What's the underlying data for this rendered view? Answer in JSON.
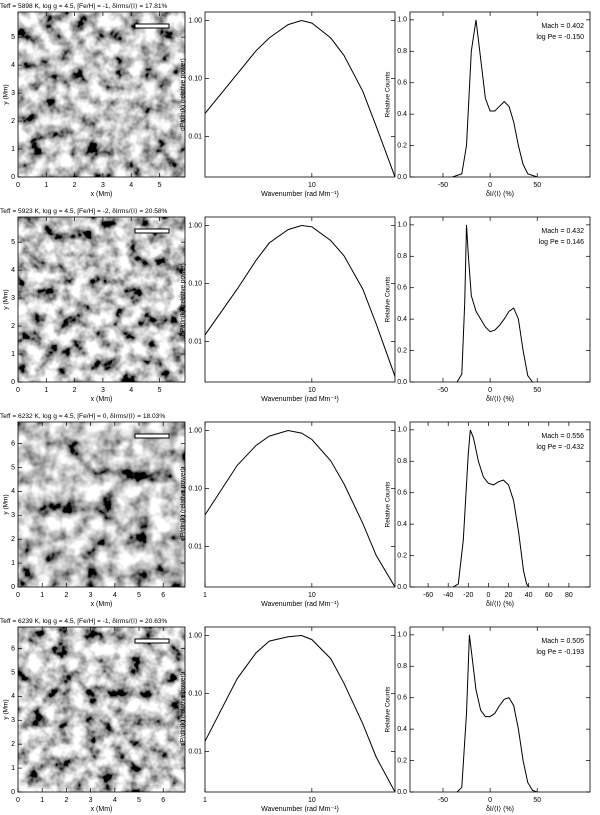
{
  "chart_data": [
    {
      "type": "image",
      "title": "Teff = 5898 K, log g = 4.5, [Fe/H] = -1, δIrms/⟨I⟩ = 17.81%",
      "xlabel": "x (Mm)",
      "ylabel": "y (Mm)",
      "xlim": [
        0,
        5.9
      ],
      "ylim": [
        0,
        5.9
      ],
      "xticks": [
        0,
        1,
        2,
        3,
        4,
        5
      ],
      "yticks": [
        0,
        1,
        2,
        3,
        4,
        5
      ]
    },
    {
      "type": "line",
      "xscale": "log",
      "yscale": "log",
      "xlabel": "Wavenumber (rad Mm⁻¹)",
      "ylabel": "dP/dln(k) (relative power)",
      "color": "#000000",
      "xlim": [
        1,
        60
      ],
      "ylim": [
        0.002,
        1.4
      ],
      "xticks": [
        10
      ],
      "yticks": [
        {
          "value": 0.01,
          "label": "0.01"
        },
        {
          "value": 0.1,
          "label": "0.10"
        },
        {
          "value": 1,
          "label": "1.00"
        }
      ],
      "x": [
        1,
        2,
        3,
        4,
        6,
        8,
        10,
        15,
        20,
        30,
        40,
        60
      ],
      "values": [
        0.025,
        0.12,
        0.3,
        0.5,
        0.85,
        1.0,
        0.9,
        0.5,
        0.25,
        0.06,
        0.015,
        0.002
      ]
    },
    {
      "type": "line",
      "xlabel": "δI/⟨I⟩ (%)",
      "ylabel": "Relative Counts",
      "annotations": [
        "Mach = 0.402",
        "log Pe = -0.150"
      ],
      "color": "#000000",
      "xlim": [
        -85,
        106
      ],
      "ylim": [
        0,
        1.05
      ],
      "xticks": [
        -50,
        0,
        50
      ],
      "yticks": [
        {
          "value": 0,
          "label": "0.0"
        },
        0.2,
        0.4,
        0.6,
        0.8,
        {
          "value": 1,
          "label": "1.0"
        }
      ],
      "x": [
        -40,
        -30,
        -25,
        -20,
        -15,
        -10,
        -5,
        0,
        5,
        10,
        15,
        20,
        25,
        30,
        35,
        40,
        50
      ],
      "values": [
        0,
        0.02,
        0.2,
        0.8,
        1.0,
        0.75,
        0.5,
        0.42,
        0.42,
        0.45,
        0.48,
        0.45,
        0.35,
        0.2,
        0.08,
        0.02,
        0
      ]
    },
    {
      "type": "image",
      "title": "Teff = 5923 K, log g = 4.5, [Fe/H] = -2, δIrms/⟨I⟩ = 20.58%",
      "xlabel": "x (Mm)",
      "ylabel": "y (Mm)",
      "xlim": [
        0,
        5.9
      ],
      "ylim": [
        0,
        5.9
      ],
      "xticks": [
        0,
        1,
        2,
        3,
        4,
        5
      ],
      "yticks": [
        0,
        1,
        2,
        3,
        4,
        5
      ]
    },
    {
      "type": "line",
      "xscale": "log",
      "yscale": "log",
      "xlabel": "Wavenumber (rad Mm⁻¹)",
      "ylabel": "dP/dln(k) (relative power)",
      "color": "#000000",
      "xlim": [
        1,
        60
      ],
      "ylim": [
        0.002,
        1.4
      ],
      "xticks": [
        10
      ],
      "yticks": [
        {
          "value": 0.01,
          "label": "0.01"
        },
        {
          "value": 0.1,
          "label": "0.10"
        },
        {
          "value": 1,
          "label": "1.00"
        }
      ],
      "x": [
        1,
        2,
        3,
        4,
        6,
        8,
        10,
        15,
        20,
        30,
        40,
        60
      ],
      "values": [
        0.013,
        0.08,
        0.25,
        0.5,
        0.85,
        1.0,
        0.95,
        0.55,
        0.3,
        0.08,
        0.02,
        0.0025
      ]
    },
    {
      "type": "line",
      "xlabel": "δI/⟨I⟩ (%)",
      "ylabel": "Relative Counts",
      "annotations": [
        "Mach = 0.432",
        "log Pe = 0.146"
      ],
      "color": "#000000",
      "xlim": [
        -85,
        106
      ],
      "ylim": [
        0,
        1.05
      ],
      "xticks": [
        -50,
        0,
        50
      ],
      "yticks": [
        {
          "value": 0,
          "label": "0.0"
        },
        0.2,
        0.4,
        0.6,
        0.8,
        {
          "value": 1,
          "label": "1.0"
        }
      ],
      "x": [
        -35,
        -30,
        -27,
        -25,
        -23,
        -20,
        -15,
        -10,
        -5,
        0,
        5,
        10,
        15,
        20,
        25,
        30,
        35,
        40,
        45
      ],
      "values": [
        0,
        0.05,
        0.5,
        1.0,
        0.8,
        0.55,
        0.45,
        0.4,
        0.35,
        0.32,
        0.33,
        0.36,
        0.4,
        0.45,
        0.47,
        0.4,
        0.2,
        0.04,
        0
      ]
    },
    {
      "type": "image",
      "title": "Teff = 6232 K, log g = 4.5, [Fe/H] = 0, δIrms/⟨I⟩ = 18.03%",
      "xlabel": "x (Mm)",
      "ylabel": "y (Mm)",
      "xlim": [
        0,
        6.9
      ],
      "ylim": [
        0,
        6.9
      ],
      "xticks": [
        0,
        1,
        2,
        3,
        4,
        5,
        6
      ],
      "yticks": [
        0,
        1,
        2,
        3,
        4,
        5,
        6
      ]
    },
    {
      "type": "line",
      "xscale": "log",
      "yscale": "log",
      "xlabel": "Wavenumber (rad Mm⁻¹)",
      "ylabel": "dP/dln(k) (relative power)",
      "color": "#000000",
      "xlim": [
        1,
        60
      ],
      "ylim": [
        0.002,
        1.4
      ],
      "xticks": [
        1,
        10
      ],
      "yticks": [
        {
          "value": 0.01,
          "label": "0.01"
        },
        {
          "value": 0.1,
          "label": "0.10"
        },
        {
          "value": 1,
          "label": "1.00"
        }
      ],
      "x": [
        1,
        2,
        3,
        4,
        6,
        8,
        10,
        15,
        20,
        30,
        40,
        60
      ],
      "values": [
        0.035,
        0.25,
        0.55,
        0.8,
        1.0,
        0.9,
        0.7,
        0.3,
        0.12,
        0.025,
        0.007,
        0.002
      ]
    },
    {
      "type": "line",
      "xlabel": "δI/⟨I⟩ (%)",
      "ylabel": "Relative Counts",
      "annotations": [
        "Mach = 0.556",
        "log Pe = -0.432"
      ],
      "color": "#000000",
      "xlim": [
        -78,
        101
      ],
      "ylim": [
        0,
        1.05
      ],
      "xticks": [
        -60,
        -40,
        -20,
        0,
        20,
        40,
        60,
        80
      ],
      "yticks": [
        {
          "value": 0,
          "label": "0.0"
        },
        0.2,
        0.4,
        0.6,
        0.8,
        {
          "value": 1,
          "label": "1.0"
        }
      ],
      "x": [
        -35,
        -30,
        -25,
        -20,
        -18,
        -15,
        -10,
        -5,
        0,
        5,
        10,
        15,
        20,
        25,
        30,
        35,
        38,
        40
      ],
      "values": [
        0,
        0.02,
        0.3,
        0.85,
        1.0,
        0.95,
        0.8,
        0.7,
        0.66,
        0.65,
        0.67,
        0.68,
        0.65,
        0.55,
        0.35,
        0.1,
        0.02,
        0
      ]
    },
    {
      "type": "image",
      "title": "Teff = 6239 K, log g = 4.5, [Fe/H] = -1, δIrms/⟨I⟩ = 20.63%",
      "xlabel": "x (Mm)",
      "ylabel": "y (Mm)",
      "xlim": [
        0,
        6.9
      ],
      "ylim": [
        0,
        6.9
      ],
      "xticks": [
        0,
        1,
        2,
        3,
        4,
        5,
        6
      ],
      "yticks": [
        0,
        1,
        2,
        3,
        4,
        5,
        6
      ]
    },
    {
      "type": "line",
      "xscale": "log",
      "yscale": "log",
      "xlabel": "Wavenumber (rad Mm⁻¹)",
      "ylabel": "dP/dln(k) (relative power)",
      "color": "#000000",
      "xlim": [
        1,
        60
      ],
      "ylim": [
        0.002,
        1.4
      ],
      "xticks": [
        1,
        10
      ],
      "yticks": [
        {
          "value": 0.01,
          "label": "0.01"
        },
        {
          "value": 0.1,
          "label": "0.10"
        },
        {
          "value": 1,
          "label": "1.00"
        }
      ],
      "x": [
        1,
        2,
        3,
        4,
        6,
        8,
        10,
        15,
        20,
        30,
        40,
        60
      ],
      "values": [
        0.015,
        0.18,
        0.5,
        0.8,
        0.95,
        1.0,
        0.85,
        0.4,
        0.15,
        0.03,
        0.008,
        0.002
      ]
    },
    {
      "type": "line",
      "xlabel": "δI/⟨I⟩ (%)",
      "ylabel": "Relative Counts",
      "annotations": [
        "Mach = 0.505",
        "log Pe = -0.193"
      ],
      "color": "#000000",
      "xlim": [
        -85,
        106
      ],
      "ylim": [
        0,
        1.05
      ],
      "xticks": [
        -50,
        0,
        50
      ],
      "yticks": [
        {
          "value": 0,
          "label": "0.0"
        },
        0.2,
        0.4,
        0.6,
        0.8,
        {
          "value": 1,
          "label": "1.0"
        }
      ],
      "x": [
        -35,
        -30,
        -25,
        -22,
        -20,
        -15,
        -10,
        -5,
        0,
        5,
        10,
        15,
        20,
        25,
        30,
        35,
        40,
        45,
        50
      ],
      "values": [
        0,
        0.03,
        0.5,
        1.0,
        0.9,
        0.65,
        0.52,
        0.48,
        0.48,
        0.5,
        0.55,
        0.59,
        0.6,
        0.55,
        0.4,
        0.2,
        0.06,
        0.01,
        0
      ]
    }
  ]
}
